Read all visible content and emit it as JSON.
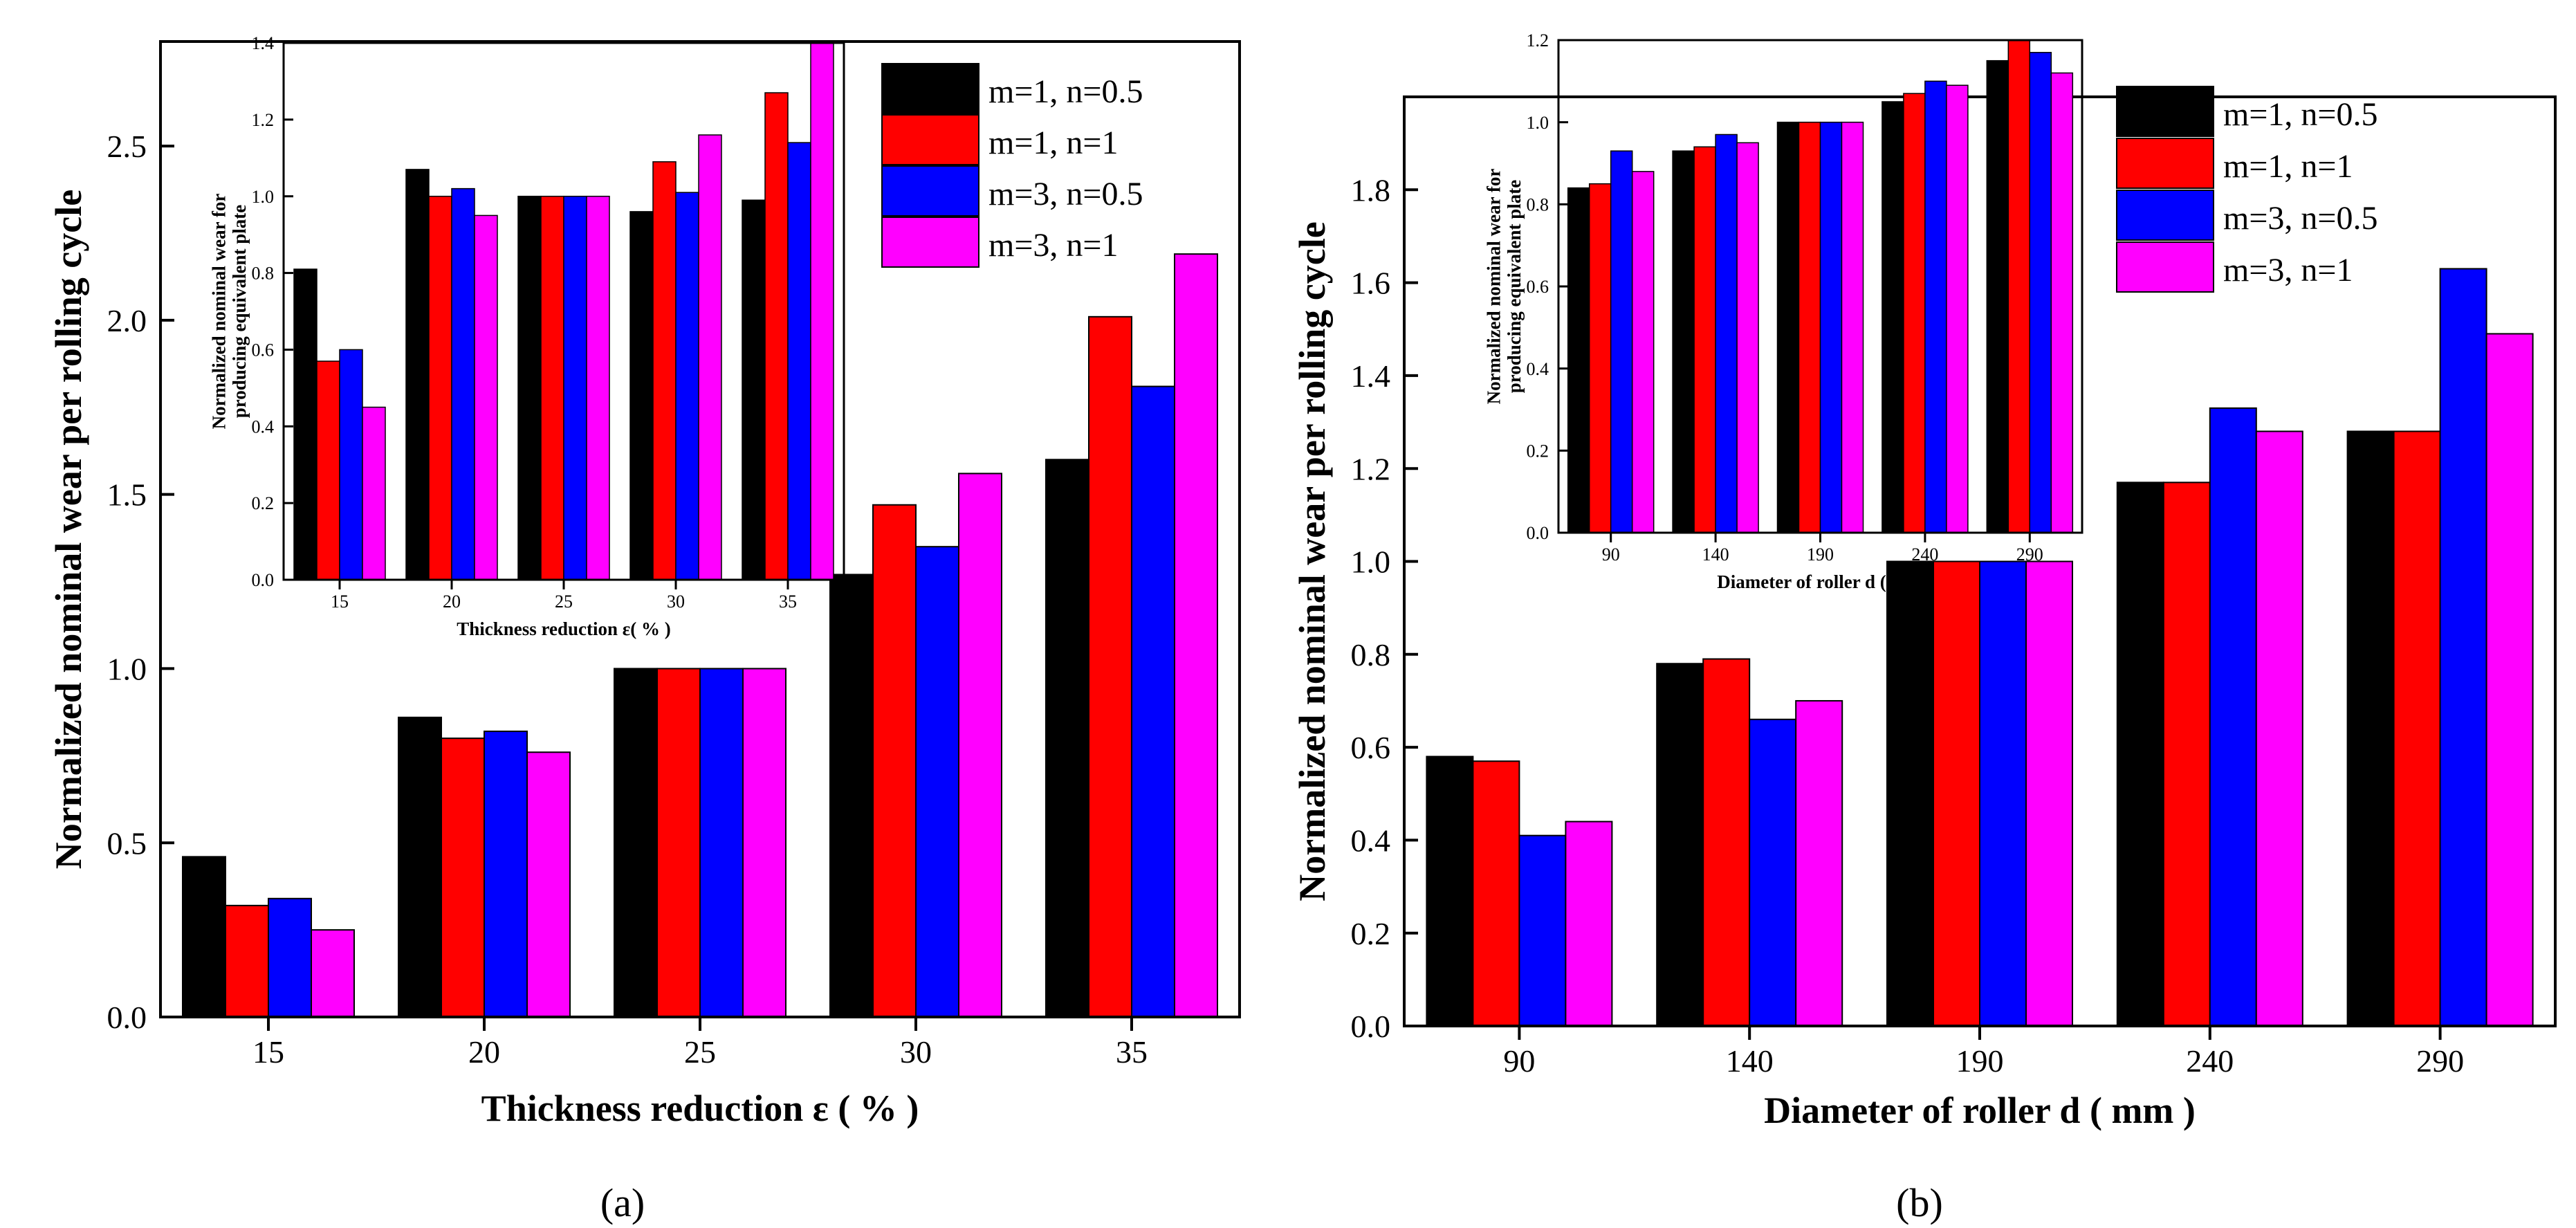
{
  "series_styles": [
    {
      "name": "m=1, n=0.5",
      "color": "#000000"
    },
    {
      "name": "m=1, n=1",
      "color": "#ff0000"
    },
    {
      "name": "m=3, n=0.5",
      "color": "#0000ff"
    },
    {
      "name": "m=3, n=1",
      "color": "#ff00ff"
    }
  ],
  "panel_labels": {
    "a": "(a)",
    "b": "(b)"
  },
  "chart_data": [
    {
      "id": "a-main",
      "type": "bar",
      "title": "",
      "xlabel": "Thickness reduction ε ( % )",
      "ylabel": "Normalized nominal wear per rolling cycle",
      "categories": [
        "15",
        "20",
        "25",
        "30",
        "35"
      ],
      "ylim": [
        0,
        2.8
      ],
      "yticks": [
        "0.0",
        "0.5",
        "1.0",
        "1.5",
        "2.0",
        "2.5"
      ],
      "ytick_values": [
        0,
        0.5,
        1.0,
        1.5,
        2.0,
        2.5
      ],
      "legend_position": "top-right",
      "series": [
        {
          "name": "m=1, n=0.5",
          "values": [
            0.46,
            0.86,
            1.0,
            1.27,
            1.6
          ]
        },
        {
          "name": "m=1, n=1",
          "values": [
            0.32,
            0.8,
            1.0,
            1.47,
            2.01
          ]
        },
        {
          "name": "m=3, n=0.5",
          "values": [
            0.34,
            0.82,
            1.0,
            1.35,
            1.81
          ]
        },
        {
          "name": "m=3, n=1",
          "values": [
            0.25,
            0.76,
            1.0,
            1.56,
            2.19
          ]
        }
      ]
    },
    {
      "id": "a-inset",
      "type": "bar",
      "title": "",
      "xlabel": "Thickness reduction ε( % )",
      "ylabel_line1": "Normalized nominal wear for",
      "ylabel_line2": "producing equivalent plate",
      "categories": [
        "15",
        "20",
        "25",
        "30",
        "35"
      ],
      "ylim": [
        0,
        1.4
      ],
      "yticks": [
        "0.0",
        "0.2",
        "0.4",
        "0.6",
        "0.8",
        "1.0",
        "1.2",
        "1.4"
      ],
      "ytick_values": [
        0,
        0.2,
        0.4,
        0.6,
        0.8,
        1.0,
        1.2,
        1.4
      ],
      "series": [
        {
          "name": "m=1, n=0.5",
          "values": [
            0.81,
            1.07,
            1.0,
            0.96,
            0.99
          ]
        },
        {
          "name": "m=1, n=1",
          "values": [
            0.57,
            1.0,
            1.0,
            1.09,
            1.27
          ]
        },
        {
          "name": "m=3, n=0.5",
          "values": [
            0.6,
            1.02,
            1.0,
            1.01,
            1.14
          ]
        },
        {
          "name": "m=3, n=1",
          "values": [
            0.45,
            0.95,
            1.0,
            1.16,
            1.4
          ]
        }
      ]
    },
    {
      "id": "b-main",
      "type": "bar",
      "title": "",
      "xlabel": "Diameter of roller d ( mm )",
      "ylabel": "Normalized nominal wear per rolling cycle",
      "categories": [
        "90",
        "140",
        "190",
        "240",
        "290"
      ],
      "ylim": [
        0,
        2.0
      ],
      "yticks": [
        "0.0",
        "0.2",
        "0.4",
        "0.6",
        "0.8",
        "1.0",
        "1.2",
        "1.4",
        "1.6",
        "1.8"
      ],
      "ytick_values": [
        0,
        0.2,
        0.4,
        0.6,
        0.8,
        1.0,
        1.2,
        1.4,
        1.6,
        1.8
      ],
      "legend_position": "top-right",
      "series": [
        {
          "name": "m=1, n=0.5",
          "values": [
            0.58,
            0.78,
            1.0,
            1.17,
            1.28
          ]
        },
        {
          "name": "m=1, n=1",
          "values": [
            0.57,
            0.79,
            1.0,
            1.17,
            1.28
          ]
        },
        {
          "name": "m=3, n=0.5",
          "values": [
            0.41,
            0.66,
            1.0,
            1.33,
            1.63
          ]
        },
        {
          "name": "m=3, n=1",
          "values": [
            0.44,
            0.7,
            1.0,
            1.28,
            1.49
          ]
        }
      ]
    },
    {
      "id": "b-inset",
      "type": "bar",
      "title": "",
      "xlabel": "Diameter of roller d (mm)",
      "ylabel_line1": "Normalized nominal wear for",
      "ylabel_line2": "producing equivalent plate",
      "categories": [
        "90",
        "140",
        "190",
        "240",
        "290"
      ],
      "ylim": [
        0,
        1.2
      ],
      "yticks": [
        "0.0",
        "0.2",
        "0.4",
        "0.6",
        "0.8",
        "1.0",
        "1.2"
      ],
      "ytick_values": [
        0,
        0.2,
        0.4,
        0.6,
        0.8,
        1.0,
        1.2
      ],
      "series": [
        {
          "name": "m=1, n=0.5",
          "values": [
            0.84,
            0.93,
            1.0,
            1.05,
            1.15
          ]
        },
        {
          "name": "m=1, n=1",
          "values": [
            0.85,
            0.94,
            1.0,
            1.07,
            1.2
          ]
        },
        {
          "name": "m=3, n=0.5",
          "values": [
            0.93,
            0.97,
            1.0,
            1.1,
            1.17
          ]
        },
        {
          "name": "m=3, n=1",
          "values": [
            0.88,
            0.95,
            1.0,
            1.09,
            1.12
          ]
        }
      ]
    }
  ]
}
